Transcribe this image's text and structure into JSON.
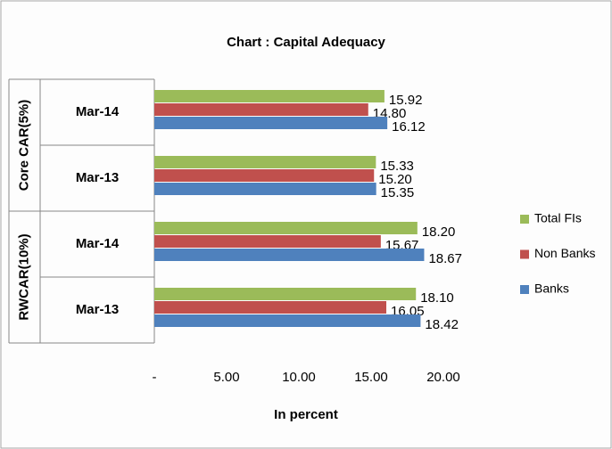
{
  "chart_data": {
    "type": "bar",
    "orientation": "horizontal",
    "title": "Chart : Capital Adequacy",
    "x_label": "In percent",
    "groups": [
      "Core CAR(5%)",
      "RWCAR(10%)"
    ],
    "categories": [
      "Mar-14",
      "Mar-13",
      "Mar-14",
      "Mar-13"
    ],
    "series": [
      {
        "name": "Total FIs",
        "color": "#9bbb59",
        "values": [
          15.92,
          15.33,
          18.2,
          18.1
        ],
        "value_labels": [
          "15.92",
          "15.33",
          "18.20",
          "18.10"
        ]
      },
      {
        "name": "Non Banks",
        "color": "#c0504d",
        "values": [
          14.8,
          15.2,
          15.67,
          16.05
        ],
        "value_labels": [
          "14.80",
          "15.20",
          "15.67",
          "16.05"
        ]
      },
      {
        "name": "Banks",
        "color": "#4f81bd",
        "values": [
          16.12,
          15.35,
          18.67,
          18.42
        ],
        "value_labels": [
          "16.12",
          "15.35",
          "18.67",
          "18.42"
        ]
      }
    ],
    "xlim": [
      0,
      20
    ],
    "xticks": [
      {
        "value": 0,
        "label": "-"
      },
      {
        "value": 5,
        "label": "5.00"
      },
      {
        "value": 10,
        "label": "10.00"
      },
      {
        "value": 15,
        "label": "15.00"
      },
      {
        "value": 20,
        "label": "20.00"
      }
    ],
    "grid": false,
    "legend": "right"
  }
}
